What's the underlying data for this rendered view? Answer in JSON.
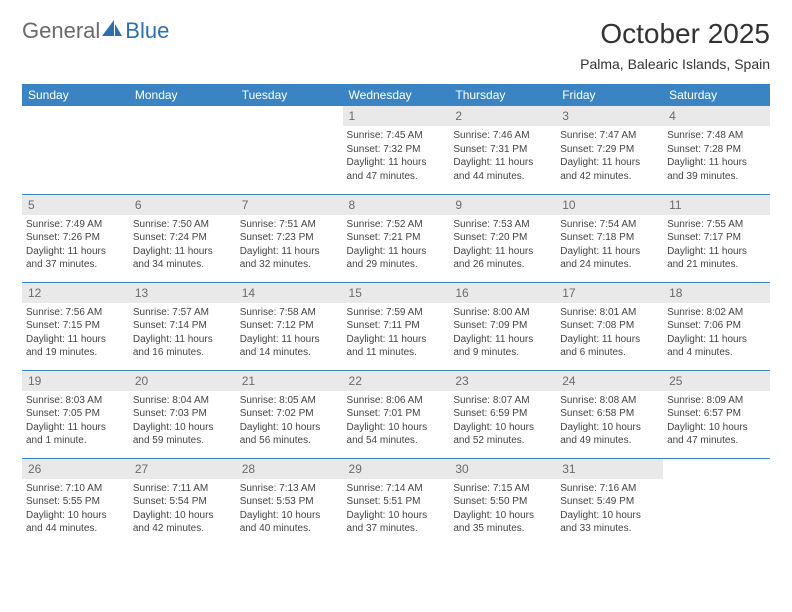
{
  "logo": {
    "text_general": "General",
    "text_blue": "Blue"
  },
  "title": "October 2025",
  "location": "Palma, Balearic Islands, Spain",
  "colors": {
    "header_blue": "#3b84c4",
    "daynum_bg": "#e9e9e9",
    "text": "#333333",
    "logo_grey": "#6b6b6b",
    "logo_blue": "#2f6fb0"
  },
  "weekdays": [
    "Sunday",
    "Monday",
    "Tuesday",
    "Wednesday",
    "Thursday",
    "Friday",
    "Saturday"
  ],
  "weeks": [
    [
      null,
      null,
      null,
      {
        "d": "1",
        "sr": "Sunrise: 7:45 AM",
        "ss": "Sunset: 7:32 PM",
        "dl1": "Daylight: 11 hours",
        "dl2": "and 47 minutes."
      },
      {
        "d": "2",
        "sr": "Sunrise: 7:46 AM",
        "ss": "Sunset: 7:31 PM",
        "dl1": "Daylight: 11 hours",
        "dl2": "and 44 minutes."
      },
      {
        "d": "3",
        "sr": "Sunrise: 7:47 AM",
        "ss": "Sunset: 7:29 PM",
        "dl1": "Daylight: 11 hours",
        "dl2": "and 42 minutes."
      },
      {
        "d": "4",
        "sr": "Sunrise: 7:48 AM",
        "ss": "Sunset: 7:28 PM",
        "dl1": "Daylight: 11 hours",
        "dl2": "and 39 minutes."
      }
    ],
    [
      {
        "d": "5",
        "sr": "Sunrise: 7:49 AM",
        "ss": "Sunset: 7:26 PM",
        "dl1": "Daylight: 11 hours",
        "dl2": "and 37 minutes."
      },
      {
        "d": "6",
        "sr": "Sunrise: 7:50 AM",
        "ss": "Sunset: 7:24 PM",
        "dl1": "Daylight: 11 hours",
        "dl2": "and 34 minutes."
      },
      {
        "d": "7",
        "sr": "Sunrise: 7:51 AM",
        "ss": "Sunset: 7:23 PM",
        "dl1": "Daylight: 11 hours",
        "dl2": "and 32 minutes."
      },
      {
        "d": "8",
        "sr": "Sunrise: 7:52 AM",
        "ss": "Sunset: 7:21 PM",
        "dl1": "Daylight: 11 hours",
        "dl2": "and 29 minutes."
      },
      {
        "d": "9",
        "sr": "Sunrise: 7:53 AM",
        "ss": "Sunset: 7:20 PM",
        "dl1": "Daylight: 11 hours",
        "dl2": "and 26 minutes."
      },
      {
        "d": "10",
        "sr": "Sunrise: 7:54 AM",
        "ss": "Sunset: 7:18 PM",
        "dl1": "Daylight: 11 hours",
        "dl2": "and 24 minutes."
      },
      {
        "d": "11",
        "sr": "Sunrise: 7:55 AM",
        "ss": "Sunset: 7:17 PM",
        "dl1": "Daylight: 11 hours",
        "dl2": "and 21 minutes."
      }
    ],
    [
      {
        "d": "12",
        "sr": "Sunrise: 7:56 AM",
        "ss": "Sunset: 7:15 PM",
        "dl1": "Daylight: 11 hours",
        "dl2": "and 19 minutes."
      },
      {
        "d": "13",
        "sr": "Sunrise: 7:57 AM",
        "ss": "Sunset: 7:14 PM",
        "dl1": "Daylight: 11 hours",
        "dl2": "and 16 minutes."
      },
      {
        "d": "14",
        "sr": "Sunrise: 7:58 AM",
        "ss": "Sunset: 7:12 PM",
        "dl1": "Daylight: 11 hours",
        "dl2": "and 14 minutes."
      },
      {
        "d": "15",
        "sr": "Sunrise: 7:59 AM",
        "ss": "Sunset: 7:11 PM",
        "dl1": "Daylight: 11 hours",
        "dl2": "and 11 minutes."
      },
      {
        "d": "16",
        "sr": "Sunrise: 8:00 AM",
        "ss": "Sunset: 7:09 PM",
        "dl1": "Daylight: 11 hours",
        "dl2": "and 9 minutes."
      },
      {
        "d": "17",
        "sr": "Sunrise: 8:01 AM",
        "ss": "Sunset: 7:08 PM",
        "dl1": "Daylight: 11 hours",
        "dl2": "and 6 minutes."
      },
      {
        "d": "18",
        "sr": "Sunrise: 8:02 AM",
        "ss": "Sunset: 7:06 PM",
        "dl1": "Daylight: 11 hours",
        "dl2": "and 4 minutes."
      }
    ],
    [
      {
        "d": "19",
        "sr": "Sunrise: 8:03 AM",
        "ss": "Sunset: 7:05 PM",
        "dl1": "Daylight: 11 hours",
        "dl2": "and 1 minute."
      },
      {
        "d": "20",
        "sr": "Sunrise: 8:04 AM",
        "ss": "Sunset: 7:03 PM",
        "dl1": "Daylight: 10 hours",
        "dl2": "and 59 minutes."
      },
      {
        "d": "21",
        "sr": "Sunrise: 8:05 AM",
        "ss": "Sunset: 7:02 PM",
        "dl1": "Daylight: 10 hours",
        "dl2": "and 56 minutes."
      },
      {
        "d": "22",
        "sr": "Sunrise: 8:06 AM",
        "ss": "Sunset: 7:01 PM",
        "dl1": "Daylight: 10 hours",
        "dl2": "and 54 minutes."
      },
      {
        "d": "23",
        "sr": "Sunrise: 8:07 AM",
        "ss": "Sunset: 6:59 PM",
        "dl1": "Daylight: 10 hours",
        "dl2": "and 52 minutes."
      },
      {
        "d": "24",
        "sr": "Sunrise: 8:08 AM",
        "ss": "Sunset: 6:58 PM",
        "dl1": "Daylight: 10 hours",
        "dl2": "and 49 minutes."
      },
      {
        "d": "25",
        "sr": "Sunrise: 8:09 AM",
        "ss": "Sunset: 6:57 PM",
        "dl1": "Daylight: 10 hours",
        "dl2": "and 47 minutes."
      }
    ],
    [
      {
        "d": "26",
        "sr": "Sunrise: 7:10 AM",
        "ss": "Sunset: 5:55 PM",
        "dl1": "Daylight: 10 hours",
        "dl2": "and 44 minutes."
      },
      {
        "d": "27",
        "sr": "Sunrise: 7:11 AM",
        "ss": "Sunset: 5:54 PM",
        "dl1": "Daylight: 10 hours",
        "dl2": "and 42 minutes."
      },
      {
        "d": "28",
        "sr": "Sunrise: 7:13 AM",
        "ss": "Sunset: 5:53 PM",
        "dl1": "Daylight: 10 hours",
        "dl2": "and 40 minutes."
      },
      {
        "d": "29",
        "sr": "Sunrise: 7:14 AM",
        "ss": "Sunset: 5:51 PM",
        "dl1": "Daylight: 10 hours",
        "dl2": "and 37 minutes."
      },
      {
        "d": "30",
        "sr": "Sunrise: 7:15 AM",
        "ss": "Sunset: 5:50 PM",
        "dl1": "Daylight: 10 hours",
        "dl2": "and 35 minutes."
      },
      {
        "d": "31",
        "sr": "Sunrise: 7:16 AM",
        "ss": "Sunset: 5:49 PM",
        "dl1": "Daylight: 10 hours",
        "dl2": "and 33 minutes."
      },
      null
    ]
  ]
}
